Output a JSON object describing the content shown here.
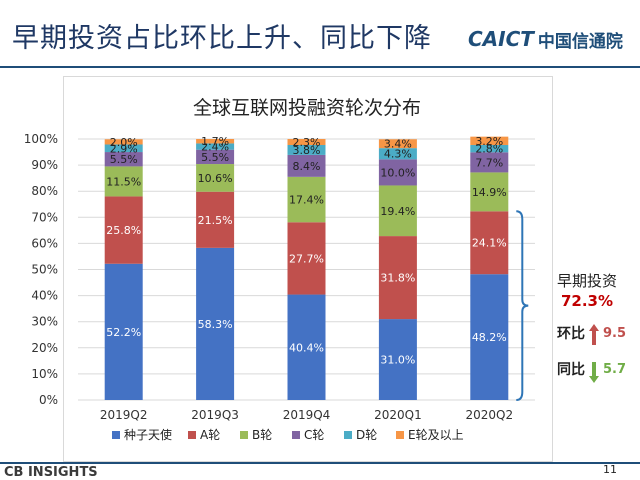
{
  "slide": {
    "title": "早期投资占比环比上升、同比下降",
    "logo_text": "CAICT",
    "logo_cn": "中国信通院",
    "footer_logo": "CB INSIGHTS",
    "page_number": "11"
  },
  "chart_data": {
    "type": "bar",
    "stacked": true,
    "title": "全球互联网投融资轮次分布",
    "categories": [
      "2019Q2",
      "2019Q3",
      "2019Q4",
      "2020Q1",
      "2020Q2"
    ],
    "ylim": [
      0,
      100
    ],
    "ytick_labels": [
      "0%",
      "10%",
      "20%",
      "30%",
      "40%",
      "50%",
      "60%",
      "70%",
      "80%",
      "90%",
      "100%"
    ],
    "legend_position": "bottom",
    "series": [
      {
        "name": "种子天使",
        "color": "#4472c4",
        "values": [
          52.2,
          58.3,
          40.4,
          31.0,
          48.2
        ],
        "labels": [
          "52.2%",
          "58.3%",
          "40.4%",
          "31.0%",
          "48.2%"
        ]
      },
      {
        "name": "A轮",
        "color": "#c0504d",
        "values": [
          25.8,
          21.5,
          27.7,
          31.8,
          24.1
        ],
        "labels": [
          "25.8%",
          "21.5%",
          "27.7%",
          "31.8%",
          "24.1%"
        ]
      },
      {
        "name": "B轮",
        "color": "#9bbb59",
        "values": [
          11.5,
          10.6,
          17.4,
          19.4,
          14.9
        ],
        "labels": [
          "11.5%",
          "10.6%",
          "17.4%",
          "19.4%",
          "14.9%"
        ]
      },
      {
        "name": "C轮",
        "color": "#8064a2",
        "values": [
          5.5,
          5.5,
          8.4,
          10.0,
          7.7
        ],
        "labels": [
          "5.5%",
          "5.5%",
          "8.4%",
          "10.0%",
          "7.7%"
        ]
      },
      {
        "name": "D轮",
        "color": "#4bacc6",
        "values": [
          2.9,
          2.4,
          3.8,
          4.3,
          2.8
        ],
        "labels": [
          "2.9%",
          "2.4%",
          "3.8%",
          "4.3%",
          "2.8%"
        ]
      },
      {
        "name": "E轮及以上",
        "color": "#f79646",
        "values": [
          2.0,
          1.7,
          2.3,
          3.4,
          3.2
        ],
        "labels": [
          "2.0%",
          "1.7%",
          "2.3%",
          "3.4%",
          "3.2%"
        ]
      }
    ],
    "annotation": {
      "label": "早期投资",
      "value": "72.3%",
      "qoq_label": "环比",
      "qoq_value": "9.5",
      "qoq_direction": "up",
      "qoq_color": "#c0504d",
      "yoy_label": "同比",
      "yoy_value": "5.7",
      "yoy_direction": "down",
      "yoy_color": "#70ad47"
    }
  }
}
